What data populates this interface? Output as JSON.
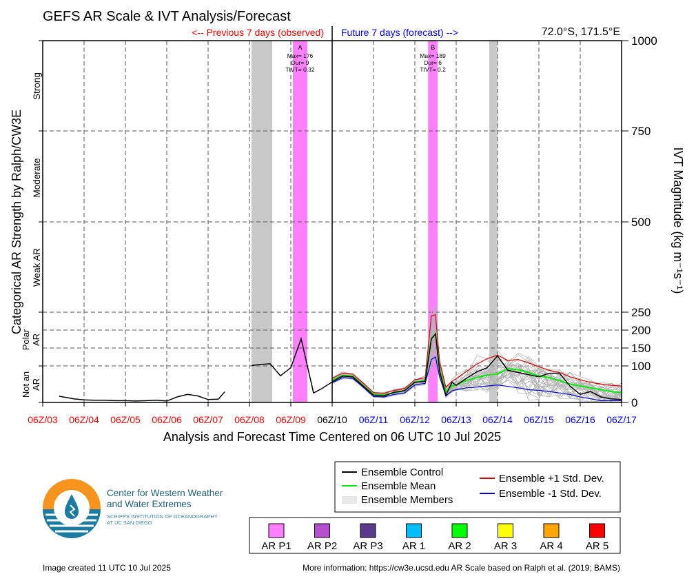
{
  "title": "GEFS AR Scale & IVT Analysis/Forecast",
  "location": "72.0°S, 171.5°E",
  "prev_label": "<-- Previous 7 days (observed)",
  "future_label": "Future 7 days (forecast) -->",
  "y_right_label": "IVT Magnitude (kg m⁻¹s⁻¹)",
  "y_left_label": "Categorical AR Strength by Ralph/CW3E",
  "x_label": "Analysis and Forecast Time Centered on 06 UTC 10 Jul 2025",
  "categories_left": [
    {
      "label": "Strong",
      "lo": 750,
      "hi": 1000
    },
    {
      "label": "Moderate",
      "lo": 500,
      "hi": 750
    },
    {
      "label": "Weak AR",
      "lo": 250,
      "hi": 500
    },
    {
      "label": "Polar AR",
      "lo": 100,
      "hi": 250
    },
    {
      "label": "Not an AR",
      "lo": 0,
      "hi": 100
    }
  ],
  "footer_left": "Image created 11 UTC 10 Jul 2025",
  "footer_right": "More information: https://cw3e.ucsd.edu AR Scale based on Ralph et al. (2019; BAMS)",
  "logo": {
    "line1": "Center for Western Weather",
    "line2": "and Water Extremes",
    "line3": "SCRIPPS INSTITUTION OF OCEANOGRAPHY",
    "line4": "AT UC SAN DIEGO"
  },
  "legend_lines": [
    {
      "label": "Ensemble Control",
      "color": "#000000"
    },
    {
      "label": "Ensemble Mean",
      "color": "#00ee00"
    },
    {
      "label": "Ensemble Members",
      "color": "#aaaaaa"
    },
    {
      "label": "Ensemble +1 Std. Dev.",
      "color": "#dd0000"
    },
    {
      "label": "Ensemble -1 Std. Dev.",
      "color": "#0000cc"
    }
  ],
  "legend_scale": [
    {
      "label": "AR P1",
      "color": "#ff80ff"
    },
    {
      "label": "AR P2",
      "color": "#b44fd0"
    },
    {
      "label": "AR P3",
      "color": "#5a3a8a"
    },
    {
      "label": "AR 1",
      "color": "#00bfff"
    },
    {
      "label": "AR 2",
      "color": "#00ff00"
    },
    {
      "label": "AR 3",
      "color": "#ffff00"
    },
    {
      "label": "AR 4",
      "color": "#ffa500"
    },
    {
      "label": "AR 5",
      "color": "#ff0000"
    }
  ],
  "chart_data": {
    "type": "line",
    "x_range_days": [
      3.0,
      17.0
    ],
    "x_ticks": [
      {
        "label": "06Z/03",
        "day": 3,
        "color": "#ff0000"
      },
      {
        "label": "06Z/04",
        "day": 4,
        "color": "#ff0000"
      },
      {
        "label": "06Z/05",
        "day": 5,
        "color": "#ff0000"
      },
      {
        "label": "06Z/06",
        "day": 6,
        "color": "#ff0000"
      },
      {
        "label": "06Z/07",
        "day": 7,
        "color": "#ff0000"
      },
      {
        "label": "06Z/08",
        "day": 8,
        "color": "#ff0000"
      },
      {
        "label": "06Z/09",
        "day": 9,
        "color": "#ff0000"
      },
      {
        "label": "06Z/10",
        "day": 10,
        "color": "#000000"
      },
      {
        "label": "06Z/11",
        "day": 11,
        "color": "#0000ff"
      },
      {
        "label": "06Z/12",
        "day": 12,
        "color": "#0000ff"
      },
      {
        "label": "06Z/13",
        "day": 13,
        "color": "#0000ff"
      },
      {
        "label": "06Z/14",
        "day": 14,
        "color": "#0000ff"
      },
      {
        "label": "06Z/15",
        "day": 15,
        "color": "#0000ff"
      },
      {
        "label": "06Z/16",
        "day": 16,
        "color": "#0000ff"
      },
      {
        "label": "06Z/17",
        "day": 17,
        "color": "#0000ff"
      }
    ],
    "y_ticks_right": [
      0,
      100,
      150,
      200,
      250,
      500,
      750,
      1000
    ],
    "y_range": [
      0,
      1000
    ],
    "gray_bands": [
      [
        8.05,
        8.55
      ],
      [
        13.8,
        14.0
      ]
    ],
    "ar_events": [
      {
        "label": "A",
        "start": 9.05,
        "end": 9.4,
        "color": "#ff80ff",
        "stats": [
          "Max= 176",
          "Dur= 9",
          "TIVT= 0.32"
        ]
      },
      {
        "label": "B",
        "start": 12.32,
        "end": 12.55,
        "color": "#ff80ff",
        "stats": [
          "Max= 189",
          "Dur= 6",
          "TIVT= 0.2"
        ]
      }
    ],
    "observed_segments": [
      {
        "x": [
          3.4,
          3.75,
          4.0,
          4.25,
          4.5,
          4.75,
          5.0,
          5.25,
          5.5,
          5.75,
          6.0,
          6.25,
          6.5,
          6.75,
          7.0,
          7.25
        ],
        "y": [
          17,
          10,
          7,
          6,
          6,
          5,
          5,
          4,
          5,
          6,
          4,
          15,
          22,
          18,
          8,
          9
        ]
      },
      {
        "x": [
          7.25,
          7.4
        ],
        "y": [
          9,
          29
        ]
      },
      {
        "x": [
          8.05,
          8.25,
          8.5,
          8.75,
          9.0,
          9.25,
          9.55,
          9.75,
          10.0
        ],
        "y": [
          101,
          104,
          106,
          73,
          95,
          176,
          26,
          38,
          56
        ]
      }
    ],
    "control": {
      "x": [
        10.0,
        10.25,
        10.5,
        10.75,
        11.0,
        11.25,
        11.5,
        11.75,
        12.0,
        12.25,
        12.4,
        12.5,
        12.6,
        12.75,
        12.9,
        13.0,
        13.25,
        13.5,
        13.75,
        14.0,
        14.25,
        14.5,
        14.75,
        15.0,
        15.25,
        15.5,
        15.75,
        16.0,
        16.25,
        16.5,
        16.75,
        17.0
      ],
      "y": [
        57,
        72,
        70,
        45,
        20,
        18,
        28,
        32,
        55,
        58,
        176,
        189,
        85,
        20,
        55,
        47,
        66,
        84,
        95,
        128,
        88,
        82,
        76,
        70,
        80,
        80,
        45,
        22,
        30,
        15,
        10,
        8
      ]
    },
    "mean": {
      "x": [
        10.0,
        10.25,
        10.5,
        10.75,
        11.0,
        11.25,
        11.5,
        11.75,
        12.0,
        12.25,
        12.4,
        12.5,
        12.6,
        12.75,
        12.9,
        13.0,
        13.25,
        13.5,
        13.75,
        14.0,
        14.25,
        14.5,
        14.75,
        15.0,
        15.25,
        15.5,
        15.75,
        16.0,
        16.25,
        16.5,
        16.75,
        17.0
      ],
      "y": [
        60,
        74,
        72,
        47,
        22,
        20,
        27,
        32,
        56,
        60,
        175,
        190,
        90,
        30,
        45,
        48,
        60,
        68,
        75,
        78,
        92,
        90,
        82,
        72,
        68,
        60,
        50,
        45,
        40,
        35,
        30,
        27
      ]
    },
    "plus_std": {
      "x": [
        10.0,
        10.25,
        10.5,
        10.75,
        11.0,
        11.25,
        11.5,
        11.75,
        12.0,
        12.25,
        12.4,
        12.5,
        12.6,
        12.75,
        12.9,
        13.0,
        13.25,
        13.5,
        13.75,
        14.0,
        14.25,
        14.5,
        14.75,
        15.0,
        15.25,
        15.5,
        15.75,
        16.0,
        16.25,
        16.5,
        16.75,
        17.0
      ],
      "y": [
        66,
        80,
        78,
        53,
        27,
        25,
        33,
        38,
        62,
        68,
        240,
        243,
        110,
        42,
        58,
        65,
        85,
        105,
        120,
        130,
        115,
        118,
        108,
        98,
        88,
        82,
        70,
        62,
        55,
        50,
        47,
        45
      ]
    },
    "minus_std": {
      "x": [
        10.0,
        10.25,
        10.5,
        10.75,
        11.0,
        11.25,
        11.5,
        11.75,
        12.0,
        12.25,
        12.4,
        12.5,
        12.6,
        12.75,
        12.9,
        13.0,
        13.25,
        13.5,
        13.75,
        14.0,
        14.25,
        14.5,
        14.75,
        15.0,
        15.25,
        15.5,
        15.75,
        16.0,
        16.25,
        16.5,
        16.75,
        17.0
      ],
      "y": [
        54,
        68,
        66,
        42,
        16,
        15,
        22,
        26,
        48,
        52,
        118,
        125,
        70,
        18,
        32,
        35,
        40,
        42,
        45,
        48,
        44,
        40,
        35,
        33,
        30,
        26,
        22,
        15,
        10,
        5,
        5,
        5
      ]
    },
    "members_count": 30
  }
}
